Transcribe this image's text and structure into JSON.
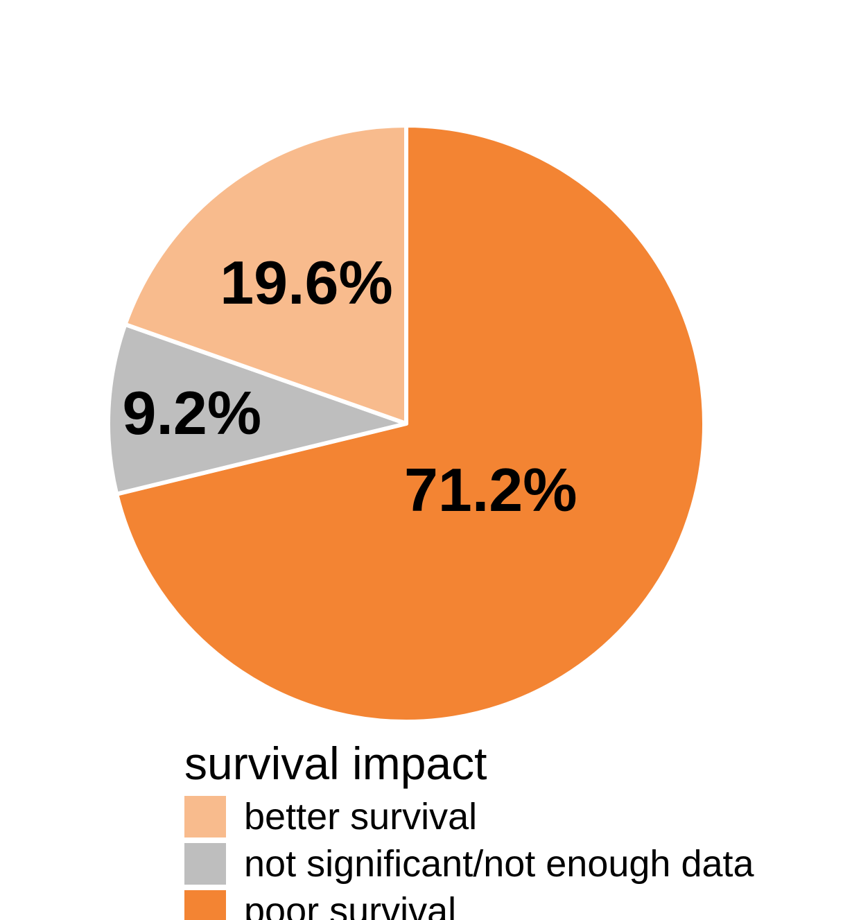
{
  "chart_data": {
    "type": "pie",
    "title": "",
    "legend": {
      "title": "survival impact",
      "placement": "bottom"
    },
    "start_angle_deg": 0,
    "direction": "clockwise",
    "slices": [
      {
        "name": "poor survival",
        "value": 71.2,
        "label": "71.2%",
        "color": "#F38433"
      },
      {
        "name": "not significant/not enough data",
        "value": 9.2,
        "label": "9.2%",
        "color": "#BEBEBE"
      },
      {
        "name": "better survival",
        "value": 19.6,
        "label": "19.6%",
        "color": "#F8BB8D"
      }
    ],
    "legend_order": [
      "better survival",
      "not significant/not enough data",
      "poor survival"
    ]
  }
}
